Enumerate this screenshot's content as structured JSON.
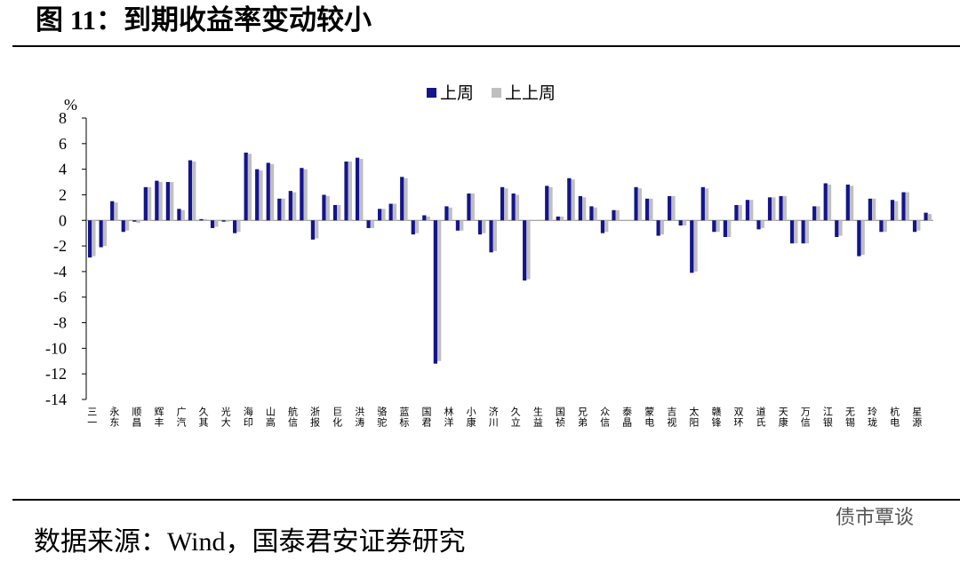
{
  "title": "图 11：到期收益率变动较小",
  "source": "数据来源：Wind，国泰君安证券研究",
  "watermark": "债市覃谈",
  "chart_data": {
    "type": "bar",
    "ylabel": "%",
    "categories": [
      "三一",
      null,
      "永东",
      null,
      "顺昌",
      null,
      "辉丰",
      null,
      "广汽",
      null,
      "久其",
      null,
      "光大",
      null,
      "海印",
      null,
      "山高",
      null,
      "航信",
      null,
      "浙报",
      null,
      "巨化",
      null,
      "洪涛",
      null,
      "骆驼",
      null,
      "蓝标",
      null,
      "国君",
      null,
      "林洋",
      null,
      "小康",
      null,
      "济川",
      null,
      "久立",
      null,
      "生益",
      null,
      "国祯",
      null,
      "兄弟",
      null,
      "众信",
      null,
      "泰晶",
      null,
      "蒙电",
      null,
      "吉视",
      null,
      "太阳",
      null,
      "赣锋",
      null,
      "双环",
      null,
      "道氏",
      null,
      "天康",
      null,
      "万信",
      null,
      "江银",
      null,
      "无锡",
      null,
      "玲珑",
      null,
      "杭电",
      null,
      "星源",
      null
    ],
    "series": [
      {
        "name": "上周",
        "color": "#14148c",
        "values": [
          -2.9,
          -2.1,
          1.5,
          -0.9,
          -0.1,
          2.6,
          3.1,
          3.0,
          0.9,
          4.7,
          0.1,
          -0.6,
          -0.1,
          -1.0,
          5.3,
          4.0,
          4.5,
          1.7,
          2.3,
          4.1,
          -1.5,
          2.0,
          1.2,
          4.6,
          4.9,
          -0.6,
          0.9,
          1.3,
          3.4,
          -1.1,
          0.4,
          -11.2,
          1.1,
          -0.8,
          2.1,
          -1.1,
          -2.5,
          2.6,
          2.1,
          -4.7,
          0.0,
          2.7,
          0.3,
          3.3,
          1.9,
          1.1,
          -1.0,
          0.8,
          0.0,
          2.6,
          1.7,
          -1.2,
          1.9,
          -0.4,
          -4.1,
          2.6,
          -0.9,
          -1.3,
          1.2,
          1.6,
          -0.7,
          1.8,
          1.9,
          -1.8,
          -1.8,
          1.1,
          2.9,
          -1.3,
          2.8,
          -2.8,
          1.7,
          -0.9,
          1.6,
          2.2,
          -0.9,
          0.6
        ]
      },
      {
        "name": "上上周",
        "color": "#bfbfbf",
        "values": [
          -2.8,
          -2.0,
          1.4,
          -0.8,
          -0.2,
          2.6,
          3.0,
          3.0,
          0.8,
          4.6,
          0.1,
          -0.5,
          -0.1,
          -0.9,
          5.2,
          3.9,
          4.4,
          1.7,
          2.2,
          4.0,
          -1.4,
          1.9,
          1.2,
          4.6,
          4.8,
          -0.6,
          0.9,
          1.3,
          3.3,
          -1.0,
          0.3,
          -11.0,
          1.0,
          -0.8,
          2.1,
          -1.0,
          -2.4,
          2.5,
          2.0,
          -4.6,
          0.0,
          2.6,
          0.3,
          3.2,
          1.8,
          1.0,
          -0.9,
          0.8,
          0.0,
          2.5,
          1.7,
          -1.1,
          1.9,
          -0.4,
          -4.0,
          2.5,
          -0.9,
          -1.3,
          1.2,
          1.6,
          -0.6,
          1.8,
          1.9,
          -1.8,
          -1.8,
          1.1,
          2.8,
          -1.2,
          2.7,
          -2.7,
          1.7,
          -0.9,
          1.5,
          2.2,
          -0.8,
          0.5
        ]
      }
    ],
    "ylim": [
      -14,
      8
    ],
    "yticks": [
      -14,
      -12,
      -10,
      -8,
      -6,
      -4,
      -2,
      0,
      2,
      4,
      6,
      8
    ],
    "legend": "top"
  }
}
